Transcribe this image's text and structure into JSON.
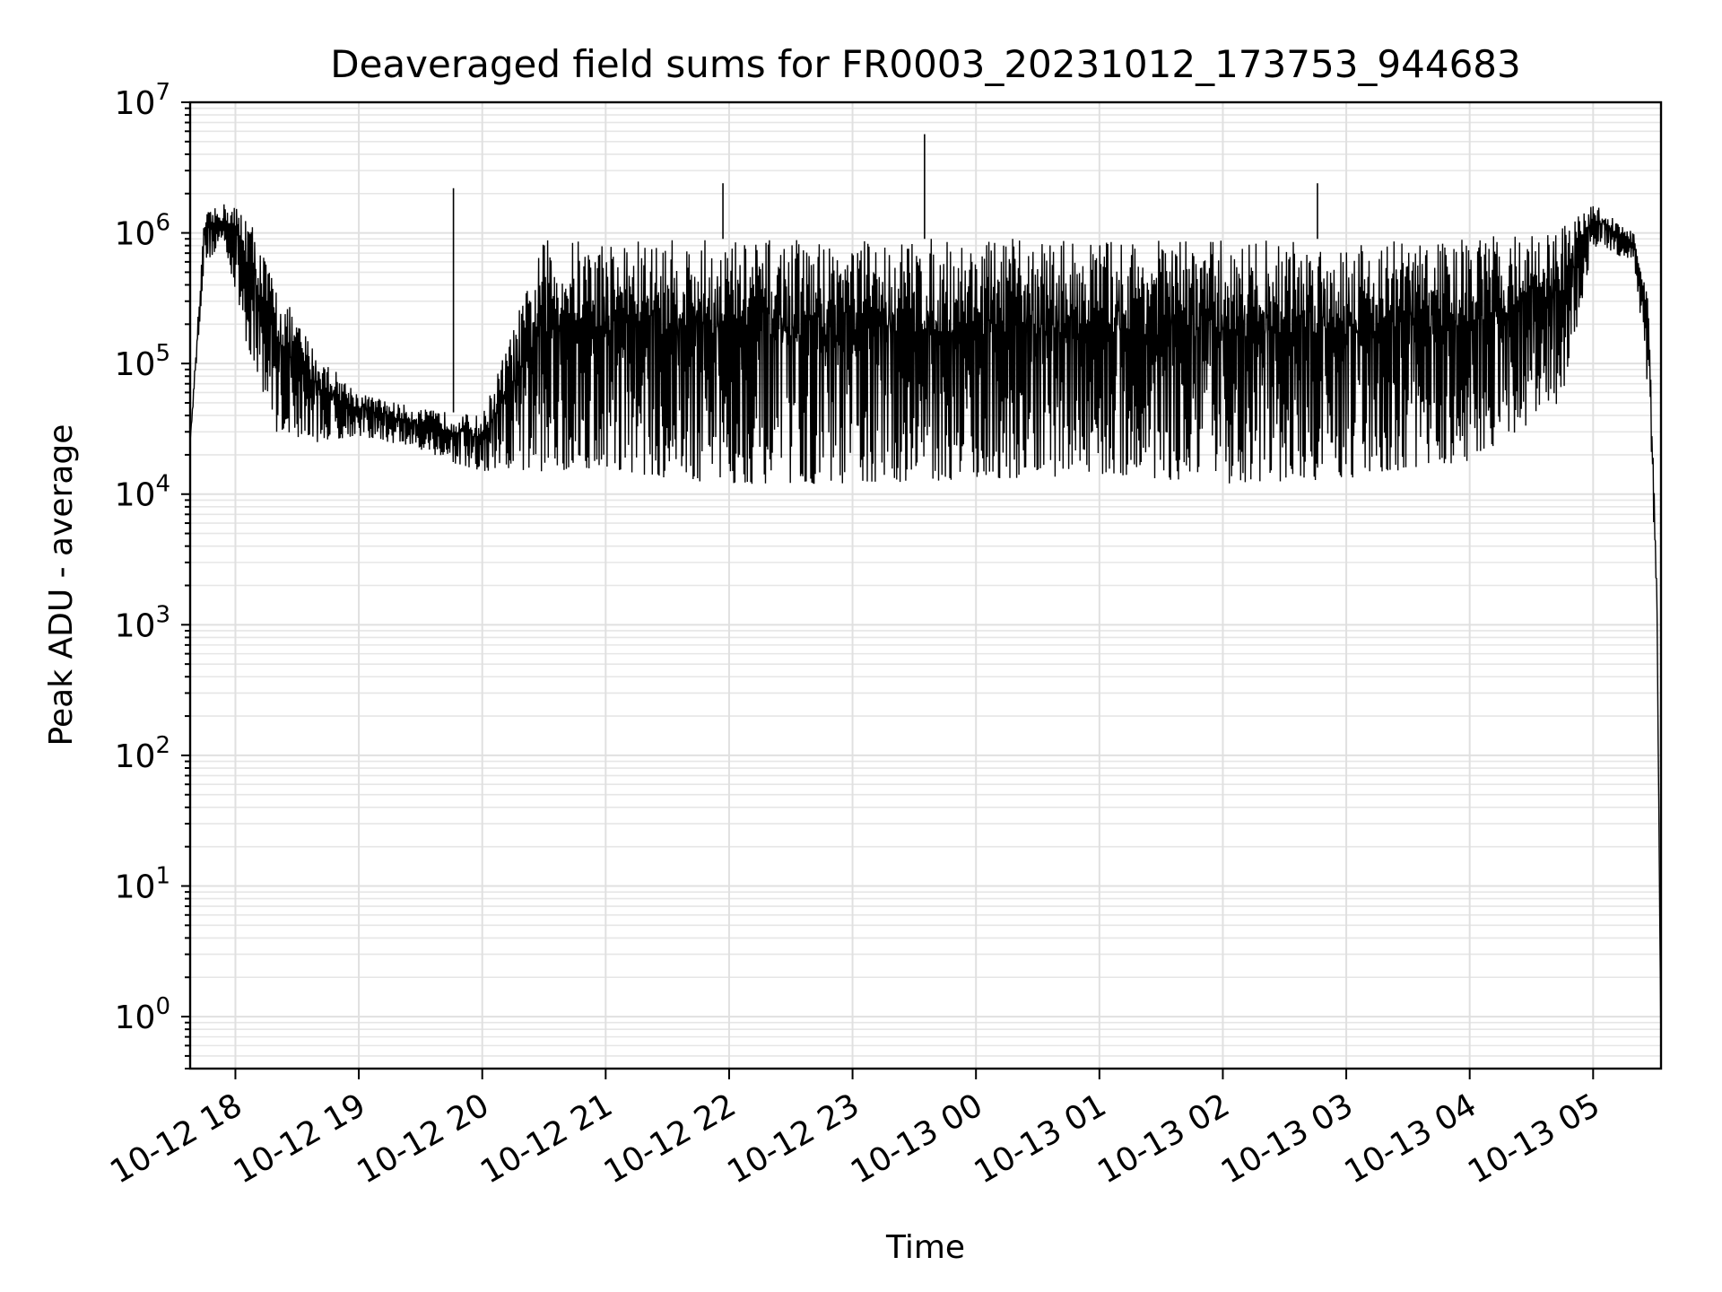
{
  "chart_data": {
    "type": "line",
    "title": "Deaveraged field sums for FR0003_20231012_173753_944683",
    "xlabel": "Time",
    "ylabel": "Peak ADU - average",
    "yscale": "log",
    "ylim": [
      0.4,
      10000000
    ],
    "xlim": [
      "2023-10-12 17:38",
      "2023-10-13 05:33"
    ],
    "grid": true,
    "legend": "none",
    "line_color": "#000000",
    "x_ticks": [
      "10-12 18",
      "10-12 19",
      "10-12 20",
      "10-12 21",
      "10-12 22",
      "10-12 23",
      "10-13 00",
      "10-13 01",
      "10-13 02",
      "10-13 03",
      "10-13 04",
      "10-13 05"
    ],
    "y_ticks": [
      {
        "base": "10",
        "exp": "0"
      },
      {
        "base": "10",
        "exp": "1"
      },
      {
        "base": "10",
        "exp": "2"
      },
      {
        "base": "10",
        "exp": "3"
      },
      {
        "base": "10",
        "exp": "4"
      },
      {
        "base": "10",
        "exp": "5"
      },
      {
        "base": "10",
        "exp": "6"
      },
      {
        "base": "10",
        "exp": "7"
      }
    ],
    "series": [
      {
        "envelope": {
          "x": [
            "2023-10-12 17:38",
            "2023-10-12 17:45",
            "2023-10-12 17:55",
            "2023-10-12 18:05",
            "2023-10-12 18:20",
            "2023-10-12 18:40",
            "2023-10-12 19:00",
            "2023-10-12 19:30",
            "2023-10-12 20:00",
            "2023-10-12 20:30",
            "2023-10-12 21:00",
            "2023-10-12 21:30",
            "2023-10-12 22:00",
            "2023-10-12 23:00",
            "2023-10-13 00:00",
            "2023-10-13 01:00",
            "2023-10-13 02:00",
            "2023-10-13 03:00",
            "2023-10-13 04:00",
            "2023-10-13 04:45",
            "2023-10-13 05:00",
            "2023-10-13 05:20",
            "2023-10-13 05:27",
            "2023-10-13 05:31",
            "2023-10-13 05:33"
          ],
          "upper": [
            25000,
            1400000,
            1700000,
            1600000,
            400000,
            120000,
            60000,
            45000,
            40000,
            900000,
            900000,
            900000,
            900000,
            900000,
            900000,
            900000,
            900000,
            900000,
            900000,
            1100000,
            1700000,
            1000000,
            300000,
            2000,
            0.5
          ],
          "lower": [
            25000,
            600000,
            800000,
            150000,
            30000,
            25000,
            28000,
            22000,
            14000,
            15000,
            16000,
            13000,
            12000,
            12000,
            13000,
            14000,
            12000,
            13000,
            18000,
            50000,
            800000,
            600000,
            50000,
            1500,
            0.5
          ]
        },
        "spikes": [
          {
            "x": "2023-10-12 19:46",
            "y": 2200000
          },
          {
            "x": "2023-10-12 21:57",
            "y": 2400000
          },
          {
            "x": "2023-10-12 23:35",
            "y": 5700000
          },
          {
            "x": "2023-10-13 02:46",
            "y": 2400000
          }
        ]
      }
    ]
  }
}
